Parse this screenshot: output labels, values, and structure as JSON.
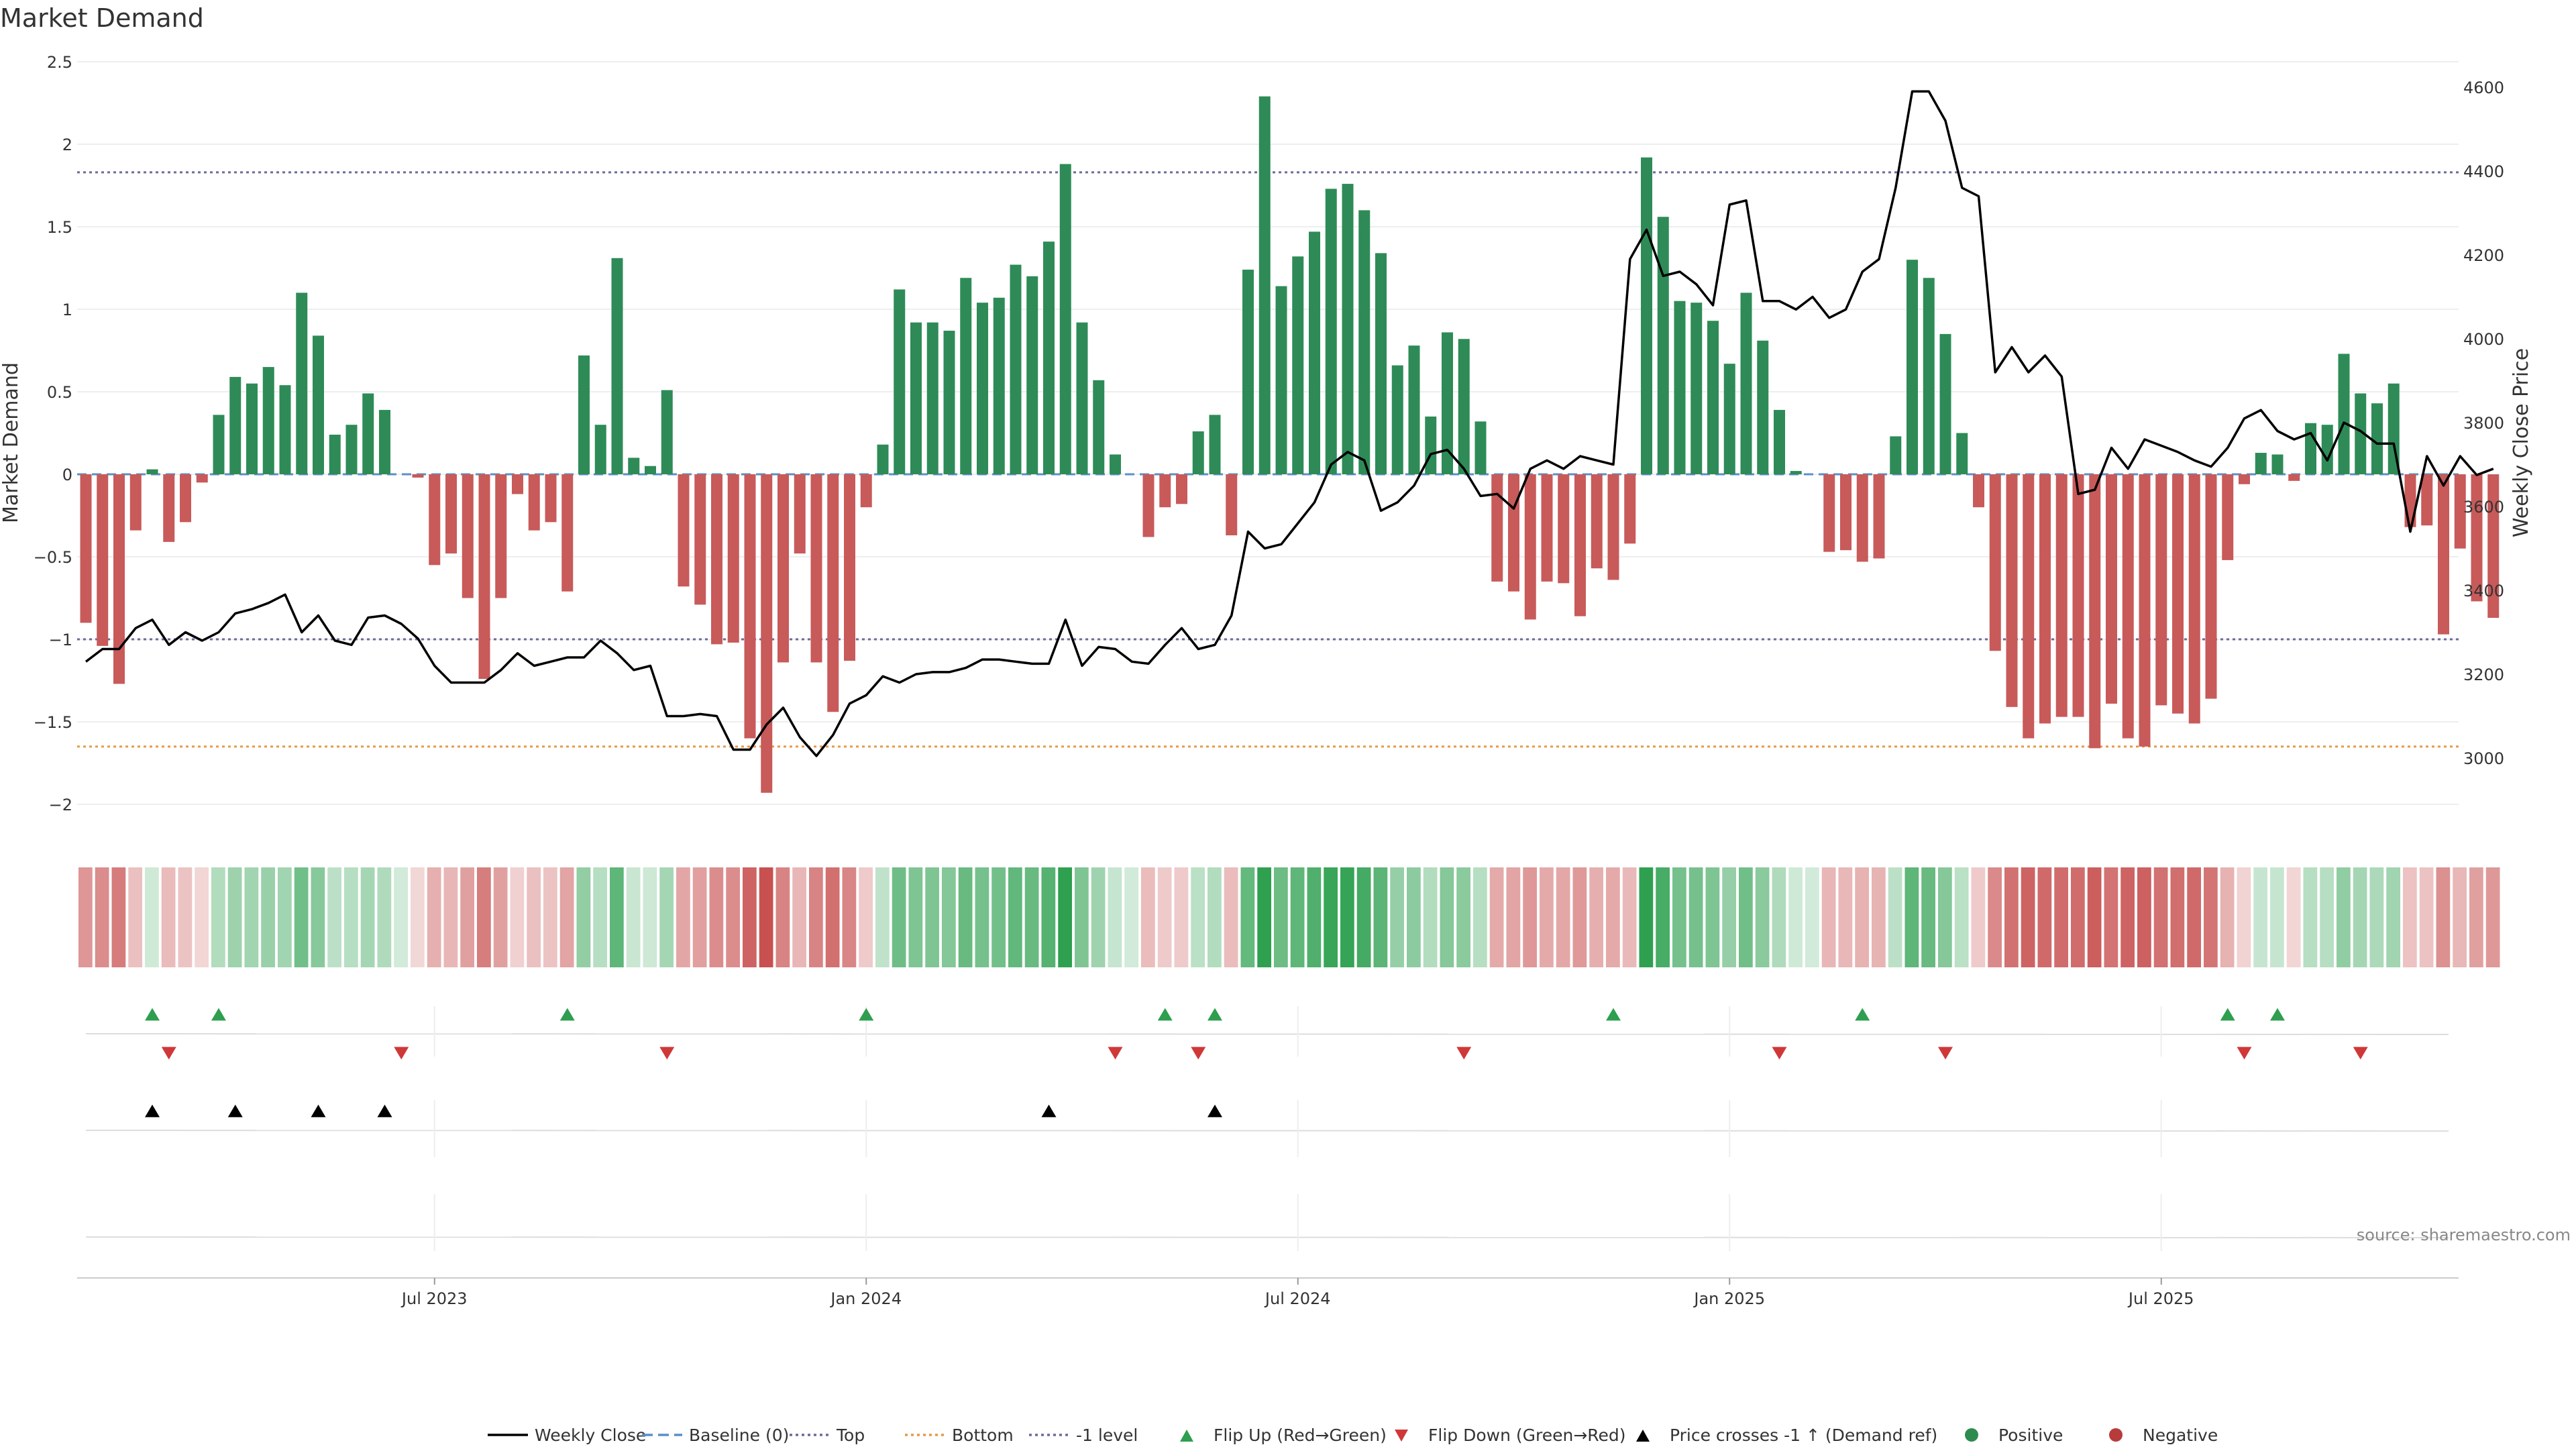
{
  "chart_data": {
    "type": "bar",
    "title": "Market Demand",
    "ylabel": "Market Demand",
    "y2label": "Weekly Close Price",
    "ylim": [
      -2.15,
      2.5
    ],
    "y2lim": [
      2900,
      4660
    ],
    "yticks": [
      2.5,
      2,
      1.5,
      1,
      0.5,
      0,
      -0.5,
      -1,
      -1.5,
      -2
    ],
    "ytick_labels": [
      "2.5",
      "2",
      "1.5",
      "1",
      "0.5",
      "0",
      "−0.5",
      "−1",
      "−1.5",
      "−2"
    ],
    "y2ticks": [
      4600,
      4400,
      4200,
      4000,
      3800,
      3600,
      3400,
      3200,
      3000
    ],
    "x_labels": [
      {
        "label": "Jul 2023",
        "week": 21
      },
      {
        "label": "Jan 2024",
        "week": 47
      },
      {
        "label": "Jul 2024",
        "week": 73
      },
      {
        "label": "Jan 2025",
        "week": 99
      },
      {
        "label": "Jul 2025",
        "week": 125
      }
    ],
    "reference_lines": [
      {
        "name": "Top",
        "value": 1.83,
        "color": "#6b6b9a"
      },
      {
        "name": "-1 level",
        "value": -1,
        "color": "#6b6b9a"
      },
      {
        "name": "Bottom",
        "value": -1.65,
        "color": "#e69a45"
      }
    ],
    "series": [
      {
        "name": "Market Demand",
        "values": [
          -0.9,
          -1.04,
          -1.27,
          -0.34,
          0.03,
          -0.41,
          -0.29,
          -0.05,
          0.36,
          0.59,
          0.55,
          0.65,
          0.54,
          1.1,
          0.84,
          0.24,
          0.3,
          0.49,
          0.39,
          0,
          -0.02,
          -0.55,
          -0.48,
          -0.75,
          -1.24,
          -0.75,
          -0.12,
          -0.34,
          -0.29,
          -0.71,
          0.72,
          0.3,
          1.31,
          0.1,
          0.05,
          0.51,
          -0.68,
          -0.79,
          -1.03,
          -1.02,
          -1.6,
          -1.93,
          -1.14,
          -0.48,
          -1.14,
          -1.44,
          -1.13,
          -0.2,
          0.18,
          1.12,
          0.92,
          0.92,
          0.87,
          1.19,
          1.04,
          1.07,
          1.27,
          1.2,
          1.41,
          1.88,
          0.92,
          0.57,
          0.12,
          0,
          -0.38,
          -0.2,
          -0.18,
          0.26,
          0.36,
          -0.37,
          1.24,
          2.29,
          1.14,
          1.32,
          1.47,
          1.73,
          1.76,
          1.6,
          1.34,
          0.66,
          0.78,
          0.35,
          0.86,
          0.82,
          0.32,
          -0.65,
          -0.71,
          -0.88,
          -0.65,
          -0.66,
          -0.86,
          -0.57,
          -0.64,
          -0.42,
          1.92,
          1.56,
          1.05,
          1.04,
          0.93,
          0.67,
          1.1,
          0.81,
          0.39,
          0.02,
          0,
          -0.47,
          -0.46,
          -0.53,
          -0.51,
          0.23,
          1.3,
          1.19,
          0.85,
          0.25,
          -0.2,
          -1.07,
          -1.41,
          -1.6,
          -1.51,
          -1.47,
          -1.47,
          -1.66,
          -1.39,
          -1.6,
          -1.65,
          -1.4,
          -1.45,
          -1.51,
          -1.36,
          -0.52,
          -0.06,
          0.13,
          0.12,
          -0.04,
          0.31,
          0.3,
          0.73,
          0.49,
          0.43,
          0.55,
          -0.32,
          -0.31,
          -0.97,
          -0.45,
          -0.77,
          -0.87
        ]
      },
      {
        "name": "Weekly Close",
        "values": [
          3230,
          3260,
          3260,
          3310,
          3330,
          3270,
          3300,
          3280,
          3300,
          3345,
          3355,
          3370,
          3390,
          3300,
          3340,
          3280,
          3270,
          3335,
          3340,
          3320,
          3285,
          3220,
          3180,
          3180,
          3180,
          3210,
          3250,
          3220,
          3230,
          3240,
          3240,
          3280,
          3250,
          3210,
          3220,
          3100,
          3100,
          3105,
          3100,
          3020,
          3020,
          3080,
          3120,
          3050,
          3005,
          3055,
          3130,
          3150,
          3195,
          3180,
          3200,
          3205,
          3205,
          3215,
          3235,
          3235,
          3230,
          3225,
          3225,
          3330,
          3220,
          3265,
          3260,
          3230,
          3225,
          3270,
          3310,
          3260,
          3270,
          3340,
          3540,
          3500,
          3510,
          3560,
          3610,
          3700,
          3730,
          3710,
          3590,
          3610,
          3650,
          3725,
          3735,
          3690,
          3625,
          3630,
          3595,
          3690,
          3710,
          3690,
          3720,
          3710,
          3700,
          4190,
          4260,
          4150,
          4160,
          4130,
          4080,
          4320,
          4330,
          4090,
          4090,
          4070,
          4100,
          4050,
          4070,
          4160,
          4190,
          4360,
          4590,
          4590,
          4520,
          4360,
          4340,
          3920,
          3980,
          3920,
          3960,
          3910,
          3630,
          3640,
          3740,
          3690,
          3760,
          3745,
          3730,
          3710,
          3695,
          3740,
          3810,
          3830,
          3780,
          3760,
          3775,
          3710,
          3800,
          3780,
          3750,
          3750,
          3540,
          3720,
          3650,
          3720,
          3675,
          3690
        ]
      }
    ],
    "flip_up_weeks": [
      4,
      8,
      29,
      47,
      65,
      68,
      92,
      107,
      129,
      132
    ],
    "flip_down_weeks": [
      5,
      19,
      35,
      62,
      67,
      83,
      102,
      112,
      130,
      137
    ],
    "price_cross_weeks": [
      4,
      9,
      14,
      18,
      58,
      68
    ],
    "legend": [
      {
        "label": "Weekly Close",
        "kind": "line",
        "color": "#000000"
      },
      {
        "label": "Baseline (0)",
        "kind": "dashed",
        "color": "#5b8fc8"
      },
      {
        "label": "Top",
        "kind": "dotted",
        "color": "#6b6b9a"
      },
      {
        "label": "Bottom",
        "kind": "dotted",
        "color": "#e69a45"
      },
      {
        "label": "-1 level",
        "kind": "dotted",
        "color": "#6b6b9a"
      },
      {
        "label": "Flip Up (Red→Green)",
        "kind": "tri-up",
        "color": "#2e9e4f"
      },
      {
        "label": "Flip Down (Green→Red)",
        "kind": "tri-down",
        "color": "#d03838"
      },
      {
        "label": "Price crosses -1 ↑ (Demand ref)",
        "kind": "tri-up",
        "color": "#000000"
      },
      {
        "label": "Positive",
        "kind": "dot",
        "color": "#2e8b4f"
      },
      {
        "label": "Negative",
        "kind": "dot",
        "color": "#b83b3b"
      }
    ],
    "source": "source: sharemaestro.com"
  },
  "colors": {
    "positive": "#2e8b57",
    "negative": "#c85a5a",
    "price": "#000000"
  }
}
